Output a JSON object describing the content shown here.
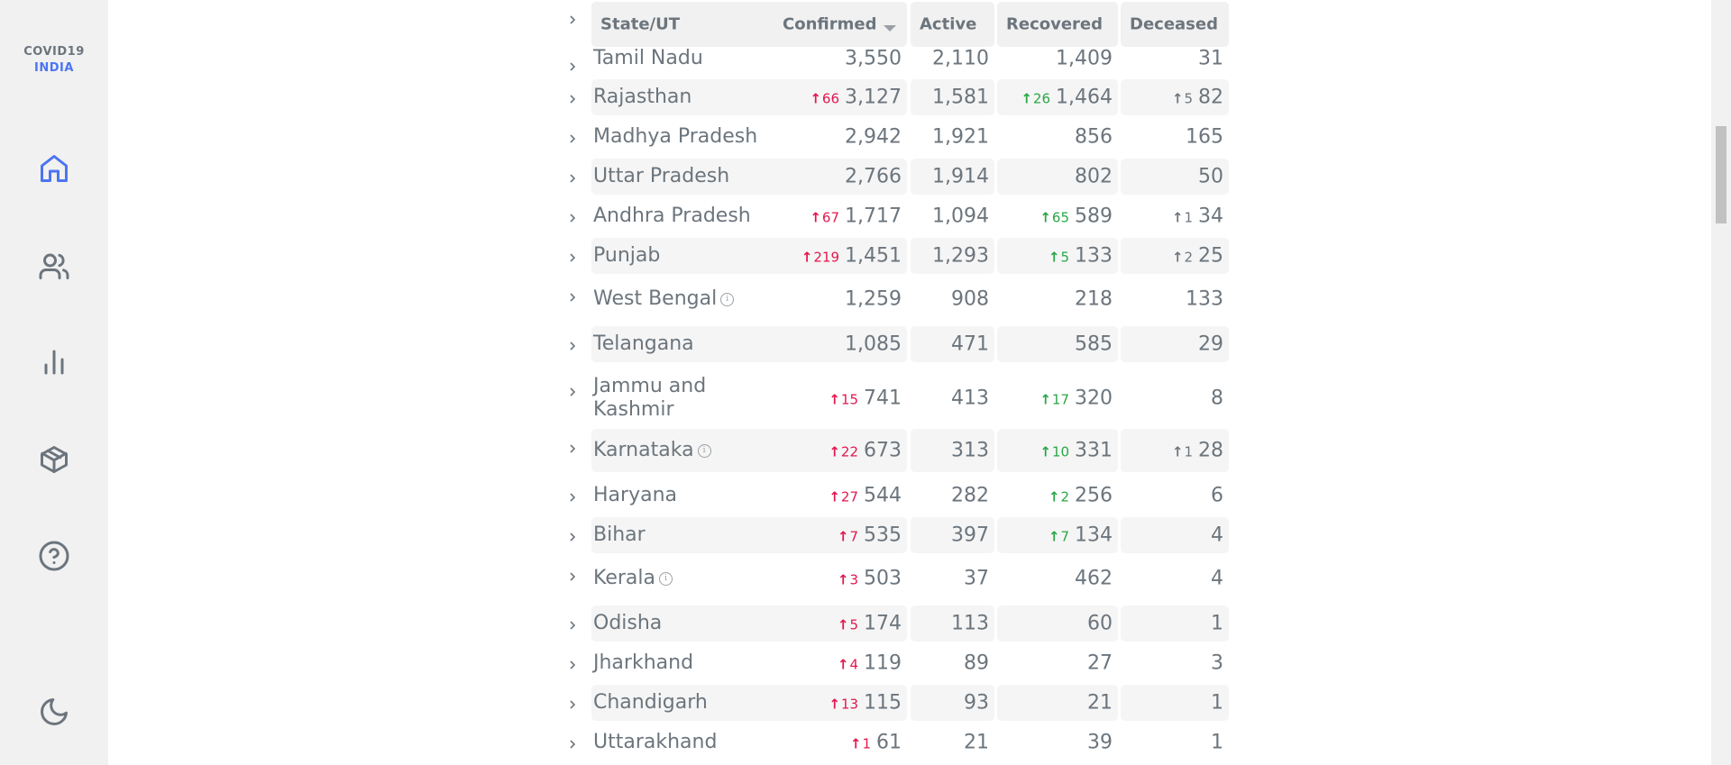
{
  "app": {
    "logo_line1": "COVID19",
    "logo_line2": "INDIA"
  },
  "sidebar": {
    "items": [
      {
        "icon": "home-icon",
        "active": true
      },
      {
        "icon": "users-icon",
        "active": false
      },
      {
        "icon": "bar-chart-icon",
        "active": false
      },
      {
        "icon": "box-icon",
        "active": false
      },
      {
        "icon": "help-icon",
        "active": false
      },
      {
        "icon": "moon-icon",
        "active": false
      }
    ]
  },
  "colors": {
    "accent": "#4c75f2",
    "confirmed_delta": "#e3174f",
    "recovered_delta": "#28a745",
    "text": "#6c757d"
  },
  "table": {
    "headers": {
      "state": "State/UT",
      "confirmed": "Confirmed",
      "active": "Active",
      "recovered": "Recovered",
      "deceased": "Deceased"
    },
    "rows": [
      {
        "state": "Tamil Nadu",
        "confirmed": "3,550",
        "active": "2,110",
        "recovered": "1,409",
        "deceased": "31",
        "d_conf": "",
        "d_rec": "",
        "d_dec": "",
        "info": false
      },
      {
        "state": "Rajasthan",
        "confirmed": "3,127",
        "active": "1,581",
        "recovered": "1,464",
        "deceased": "82",
        "d_conf": "66",
        "d_rec": "26",
        "d_dec": "5",
        "info": false
      },
      {
        "state": "Madhya Pradesh",
        "confirmed": "2,942",
        "active": "1,921",
        "recovered": "856",
        "deceased": "165",
        "d_conf": "",
        "d_rec": "",
        "d_dec": "",
        "info": false
      },
      {
        "state": "Uttar Pradesh",
        "confirmed": "2,766",
        "active": "1,914",
        "recovered": "802",
        "deceased": "50",
        "d_conf": "",
        "d_rec": "",
        "d_dec": "",
        "info": false
      },
      {
        "state": "Andhra Pradesh",
        "confirmed": "1,717",
        "active": "1,094",
        "recovered": "589",
        "deceased": "34",
        "d_conf": "67",
        "d_rec": "65",
        "d_dec": "1",
        "info": false
      },
      {
        "state": "Punjab",
        "confirmed": "1,451",
        "active": "1,293",
        "recovered": "133",
        "deceased": "25",
        "d_conf": "219",
        "d_rec": "5",
        "d_dec": "2",
        "info": false
      },
      {
        "state": "West Bengal",
        "confirmed": "1,259",
        "active": "908",
        "recovered": "218",
        "deceased": "133",
        "d_conf": "",
        "d_rec": "",
        "d_dec": "",
        "info": true
      },
      {
        "state": "Telangana",
        "confirmed": "1,085",
        "active": "471",
        "recovered": "585",
        "deceased": "29",
        "d_conf": "",
        "d_rec": "",
        "d_dec": "",
        "info": false
      },
      {
        "state": "Jammu and Kashmir",
        "confirmed": "741",
        "active": "413",
        "recovered": "320",
        "deceased": "8",
        "d_conf": "15",
        "d_rec": "17",
        "d_dec": "",
        "info": false
      },
      {
        "state": "Karnataka",
        "confirmed": "673",
        "active": "313",
        "recovered": "331",
        "deceased": "28",
        "d_conf": "22",
        "d_rec": "10",
        "d_dec": "1",
        "info": true
      },
      {
        "state": "Haryana",
        "confirmed": "544",
        "active": "282",
        "recovered": "256",
        "deceased": "6",
        "d_conf": "27",
        "d_rec": "2",
        "d_dec": "",
        "info": false
      },
      {
        "state": "Bihar",
        "confirmed": "535",
        "active": "397",
        "recovered": "134",
        "deceased": "4",
        "d_conf": "7",
        "d_rec": "7",
        "d_dec": "",
        "info": false
      },
      {
        "state": "Kerala",
        "confirmed": "503",
        "active": "37",
        "recovered": "462",
        "deceased": "4",
        "d_conf": "3",
        "d_rec": "",
        "d_dec": "",
        "info": true
      },
      {
        "state": "Odisha",
        "confirmed": "174",
        "active": "113",
        "recovered": "60",
        "deceased": "1",
        "d_conf": "5",
        "d_rec": "",
        "d_dec": "",
        "info": false
      },
      {
        "state": "Jharkhand",
        "confirmed": "119",
        "active": "89",
        "recovered": "27",
        "deceased": "3",
        "d_conf": "4",
        "d_rec": "",
        "d_dec": "",
        "info": false
      },
      {
        "state": "Chandigarh",
        "confirmed": "115",
        "active": "93",
        "recovered": "21",
        "deceased": "1",
        "d_conf": "13",
        "d_rec": "",
        "d_dec": "",
        "info": false
      },
      {
        "state": "Uttarakhand",
        "confirmed": "61",
        "active": "21",
        "recovered": "39",
        "deceased": "1",
        "d_conf": "1",
        "d_rec": "",
        "d_dec": "",
        "info": false
      }
    ]
  }
}
